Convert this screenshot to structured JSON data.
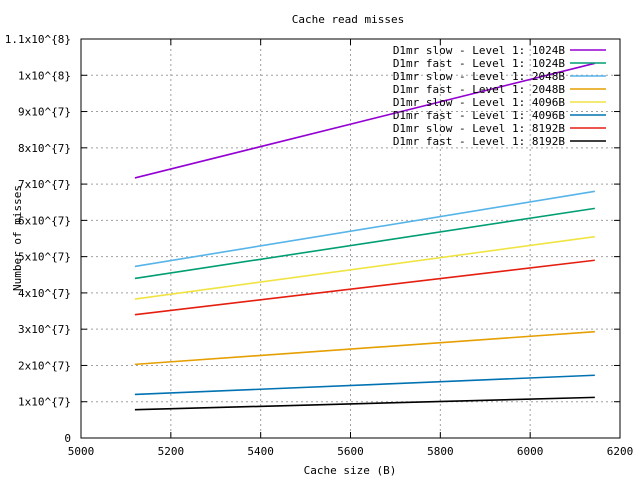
{
  "chart_data": {
    "type": "line",
    "title": "Cache read misses",
    "xlabel": "Cache size (B)",
    "ylabel": "Number of misses",
    "xlim": [
      5000,
      6200
    ],
    "ylim": [
      0,
      110000000
    ],
    "grid": true,
    "legend_position": "top-right",
    "x_ticks": [
      {
        "value": 5000,
        "label": "5000"
      },
      {
        "value": 5200,
        "label": "5200"
      },
      {
        "value": 5400,
        "label": "5400"
      },
      {
        "value": 5600,
        "label": "5600"
      },
      {
        "value": 5800,
        "label": "5800"
      },
      {
        "value": 6000,
        "label": "6000"
      },
      {
        "value": 6200,
        "label": "6200"
      }
    ],
    "y_ticks": [
      {
        "value": 0,
        "label": "0"
      },
      {
        "value": 10000000,
        "label": "1x10^{7}"
      },
      {
        "value": 20000000,
        "label": "2x10^{7}"
      },
      {
        "value": 30000000,
        "label": "3x10^{7}"
      },
      {
        "value": 40000000,
        "label": "4x10^{7}"
      },
      {
        "value": 50000000,
        "label": "5x10^{7}"
      },
      {
        "value": 60000000,
        "label": "6x10^{7}"
      },
      {
        "value": 70000000,
        "label": "7x10^{7}"
      },
      {
        "value": 80000000,
        "label": "8x10^{7}"
      },
      {
        "value": 90000000,
        "label": "9x10^{7}"
      },
      {
        "value": 100000000,
        "label": "1x10^{8}"
      },
      {
        "value": 110000000,
        "label": "1.1x10^{8}"
      }
    ],
    "series": [
      {
        "name": "D1mr slow - Level 1: 1024B",
        "color": "#9400d3",
        "x": [
          5120,
          6144
        ],
        "y": [
          71700000,
          103300000
        ]
      },
      {
        "name": "D1mr fast - Level 1: 1024B",
        "color": "#009e73",
        "x": [
          5120,
          6144
        ],
        "y": [
          44000000,
          63300000
        ]
      },
      {
        "name": "D1mr slow - Level 1: 2048B",
        "color": "#56b4e9",
        "x": [
          5120,
          6144
        ],
        "y": [
          47300000,
          68000000
        ]
      },
      {
        "name": "D1mr fast - Level 1: 2048B",
        "color": "#e69f00",
        "x": [
          5120,
          6144
        ],
        "y": [
          20300000,
          29300000
        ]
      },
      {
        "name": "D1mr slow - Level 1: 4096B",
        "color": "#f0e442",
        "x": [
          5120,
          6144
        ],
        "y": [
          38300000,
          55500000
        ]
      },
      {
        "name": "D1mr fast - Level 1: 4096B",
        "color": "#0072b2",
        "x": [
          5120,
          6144
        ],
        "y": [
          12000000,
          17300000
        ]
      },
      {
        "name": "D1mr slow - Level 1: 8192B",
        "color": "#e51e10",
        "x": [
          5120,
          6144
        ],
        "y": [
          34000000,
          49000000
        ]
      },
      {
        "name": "D1mr fast - Level 1: 8192B",
        "color": "#000000",
        "x": [
          5120,
          6144
        ],
        "y": [
          7800000,
          11200000
        ]
      }
    ]
  }
}
